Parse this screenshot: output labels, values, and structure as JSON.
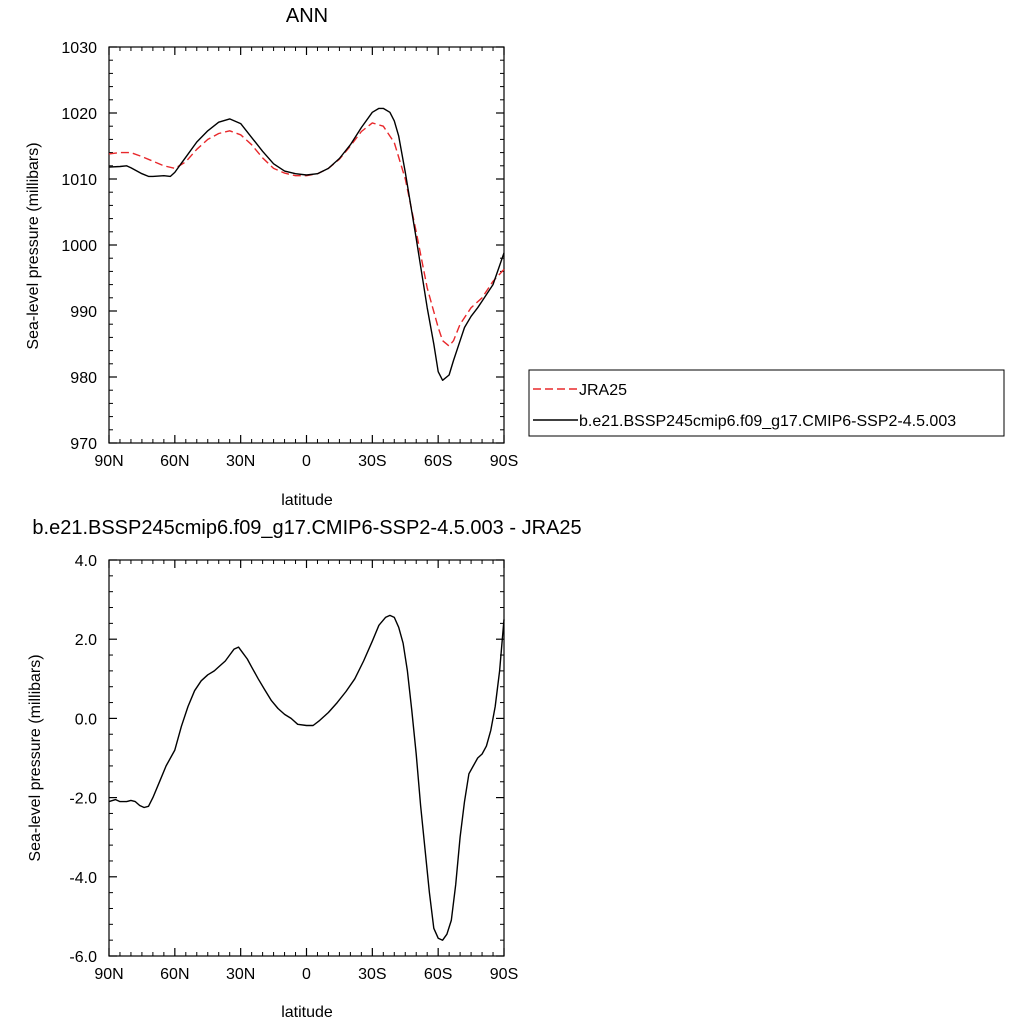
{
  "chart_data": [
    {
      "type": "line",
      "title": "ANN",
      "xlabel": "latitude",
      "ylabel": "Sea-level pressure (millibars)",
      "xlim": [
        -90,
        90
      ],
      "ylim": [
        970,
        1030
      ],
      "xticks": [
        -90,
        -60,
        -30,
        0,
        30,
        60,
        90
      ],
      "xtick_labels": [
        "90N",
        "60N",
        "30N",
        "0",
        "30S",
        "60S",
        "90S"
      ],
      "yticks": [
        970,
        980,
        990,
        1000,
        1010,
        1020,
        1030
      ],
      "ytick_labels": [
        "970",
        "980",
        "990",
        "1000",
        "1010",
        "1020",
        "1030"
      ],
      "legend_position": "right",
      "series": [
        {
          "name": "JRA25",
          "color": "#e8282b",
          "dash": "dashed",
          "x": [
            -90,
            -85,
            -80,
            -75,
            -70,
            -65,
            -60,
            -55,
            -50,
            -45,
            -40,
            -35,
            -30,
            -25,
            -20,
            -15,
            -10,
            -5,
            0,
            5,
            10,
            15,
            20,
            25,
            30,
            35,
            40,
            45,
            50,
            55,
            60,
            62,
            65,
            67,
            70,
            75,
            80,
            85,
            90
          ],
          "y": [
            1013.8,
            1014.0,
            1014.0,
            1013.4,
            1012.7,
            1012.0,
            1011.6,
            1012.6,
            1014.5,
            1016.0,
            1016.9,
            1017.3,
            1016.7,
            1015.2,
            1013.2,
            1011.6,
            1010.9,
            1010.5,
            1010.5,
            1010.8,
            1011.6,
            1013.0,
            1015.0,
            1017.2,
            1018.5,
            1018.0,
            1015.5,
            1010.0,
            1002.0,
            993.5,
            987.5,
            985.5,
            984.7,
            985.5,
            988.0,
            990.5,
            992.0,
            994.5,
            996.3
          ]
        },
        {
          "name": "b.e21.BSSP245cmip6.f09_g17.CMIP6-SSP2-4.5.003",
          "color": "#000000",
          "dash": "solid",
          "x": [
            -90,
            -85,
            -82,
            -80,
            -75,
            -72,
            -70,
            -65,
            -62,
            -60,
            -57,
            -55,
            -50,
            -45,
            -40,
            -35,
            -30,
            -25,
            -20,
            -15,
            -10,
            -5,
            0,
            5,
            10,
            15,
            20,
            25,
            30,
            33,
            35,
            38,
            40,
            42,
            45,
            50,
            55,
            58,
            60,
            62,
            65,
            67,
            70,
            72,
            75,
            78,
            80,
            85,
            90
          ],
          "y": [
            1011.8,
            1011.9,
            1012.0,
            1011.7,
            1010.8,
            1010.4,
            1010.4,
            1010.5,
            1010.4,
            1011.0,
            1012.4,
            1013.3,
            1015.6,
            1017.3,
            1018.6,
            1019.1,
            1018.4,
            1016.3,
            1014.2,
            1012.3,
            1011.2,
            1010.8,
            1010.6,
            1010.8,
            1011.6,
            1013.1,
            1015.2,
            1017.8,
            1020.1,
            1020.7,
            1020.7,
            1020.1,
            1018.8,
            1016.5,
            1011.0,
            1001.0,
            990.5,
            985.0,
            980.8,
            979.5,
            980.3,
            982.5,
            985.5,
            987.5,
            989.2,
            990.5,
            991.5,
            994.0,
            998.8
          ]
        }
      ]
    },
    {
      "type": "line",
      "title": "b.e21.BSSP245cmip6.f09_g17.CMIP6-SSP2-4.5.003 - JRA25",
      "xlabel": "latitude",
      "ylabel": "Sea-level pressure (millibars)",
      "xlim": [
        -90,
        90
      ],
      "ylim": [
        -6,
        4
      ],
      "xticks": [
        -90,
        -60,
        -30,
        0,
        30,
        60,
        90
      ],
      "xtick_labels": [
        "90N",
        "60N",
        "30N",
        "0",
        "30S",
        "60S",
        "90S"
      ],
      "yticks": [
        -6,
        -4,
        -2,
        0,
        2,
        4
      ],
      "ytick_labels": [
        "-6.0",
        "-4.0",
        "-2.0",
        "0.0",
        "2.0",
        "4.0"
      ],
      "series": [
        {
          "color": "#000000",
          "dash": "solid",
          "x": [
            -90,
            -87,
            -85,
            -82,
            -80,
            -78,
            -76,
            -74,
            -72,
            -70,
            -67,
            -64,
            -60,
            -57,
            -54,
            -51,
            -48,
            -45,
            -42,
            -40,
            -37,
            -35,
            -33,
            -31,
            -29,
            -27,
            -25,
            -22,
            -19,
            -16,
            -13,
            -10,
            -7,
            -4,
            0,
            3,
            6,
            10,
            14,
            18,
            22,
            26,
            30,
            33,
            36,
            38,
            40,
            42,
            44,
            46,
            48,
            50,
            52,
            54,
            56,
            58,
            60,
            62,
            64,
            66,
            68,
            70,
            72,
            74,
            76,
            78,
            80,
            82,
            84,
            86,
            88,
            90
          ],
          "y": [
            -2.1,
            -2.05,
            -2.1,
            -2.1,
            -2.07,
            -2.1,
            -2.2,
            -2.25,
            -2.22,
            -2.0,
            -1.6,
            -1.2,
            -0.8,
            -0.2,
            0.3,
            0.7,
            0.95,
            1.1,
            1.2,
            1.3,
            1.45,
            1.6,
            1.75,
            1.8,
            1.65,
            1.5,
            1.3,
            1.0,
            0.72,
            0.45,
            0.25,
            0.1,
            0.0,
            -0.15,
            -0.18,
            -0.18,
            -0.05,
            0.15,
            0.4,
            0.68,
            1.0,
            1.45,
            1.95,
            2.35,
            2.55,
            2.6,
            2.55,
            2.3,
            1.9,
            1.2,
            0.2,
            -0.9,
            -2.2,
            -3.3,
            -4.4,
            -5.3,
            -5.55,
            -5.6,
            -5.45,
            -5.1,
            -4.2,
            -3.0,
            -2.1,
            -1.4,
            -1.2,
            -1.0,
            -0.9,
            -0.7,
            -0.3,
            0.3,
            1.2,
            2.5
          ]
        }
      ]
    }
  ]
}
